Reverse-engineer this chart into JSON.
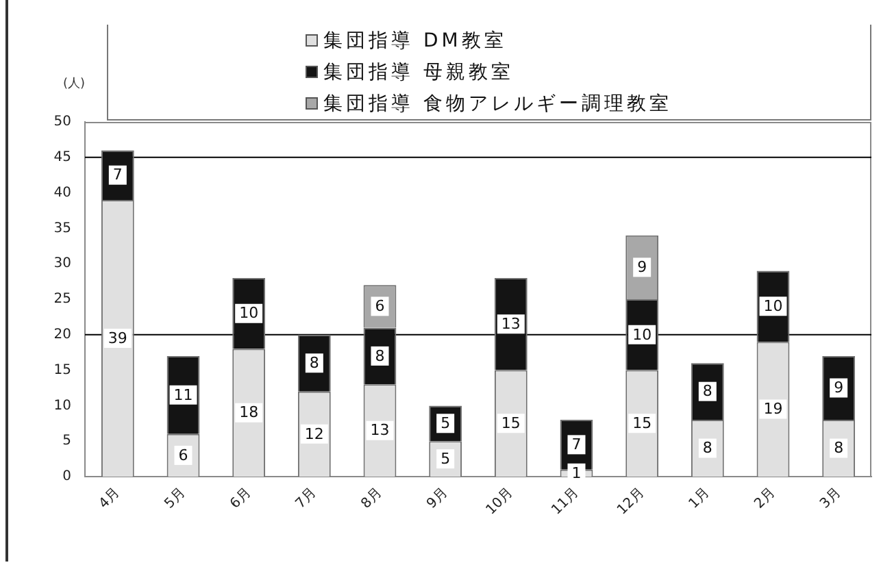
{
  "chart_data": {
    "type": "bar",
    "stacked": true,
    "ylabel": "(人)",
    "categories": [
      "4月",
      "5月",
      "6月",
      "7月",
      "8月",
      "9月",
      "10月",
      "11月",
      "12月",
      "1月",
      "2月",
      "3月"
    ],
    "series": [
      {
        "name": "集団指導 DM教室",
        "color": "#e0e0e0",
        "values": [
          39,
          6,
          18,
          12,
          13,
          5,
          15,
          1,
          15,
          8,
          19,
          8
        ]
      },
      {
        "name": "集団指導 母親教室",
        "color": "#141414",
        "values": [
          7,
          11,
          10,
          8,
          8,
          5,
          13,
          7,
          10,
          8,
          10,
          9
        ]
      },
      {
        "name": "集団指導 食物アレルギー調理教室",
        "color": "#a8a8a8",
        "values": [
          null,
          null,
          null,
          null,
          6,
          null,
          null,
          null,
          9,
          null,
          null,
          null
        ]
      }
    ],
    "ylim": [
      0,
      50
    ],
    "yticks": [
      0,
      5,
      10,
      15,
      20,
      25,
      30,
      35,
      40,
      45,
      50
    ],
    "grid": false,
    "legend": "top",
    "data_labels": true,
    "ref_lines": [
      {
        "axis": "y",
        "value": 20,
        "color": "#000000"
      },
      {
        "axis": "y",
        "value": 45,
        "color": "#000000"
      }
    ]
  }
}
